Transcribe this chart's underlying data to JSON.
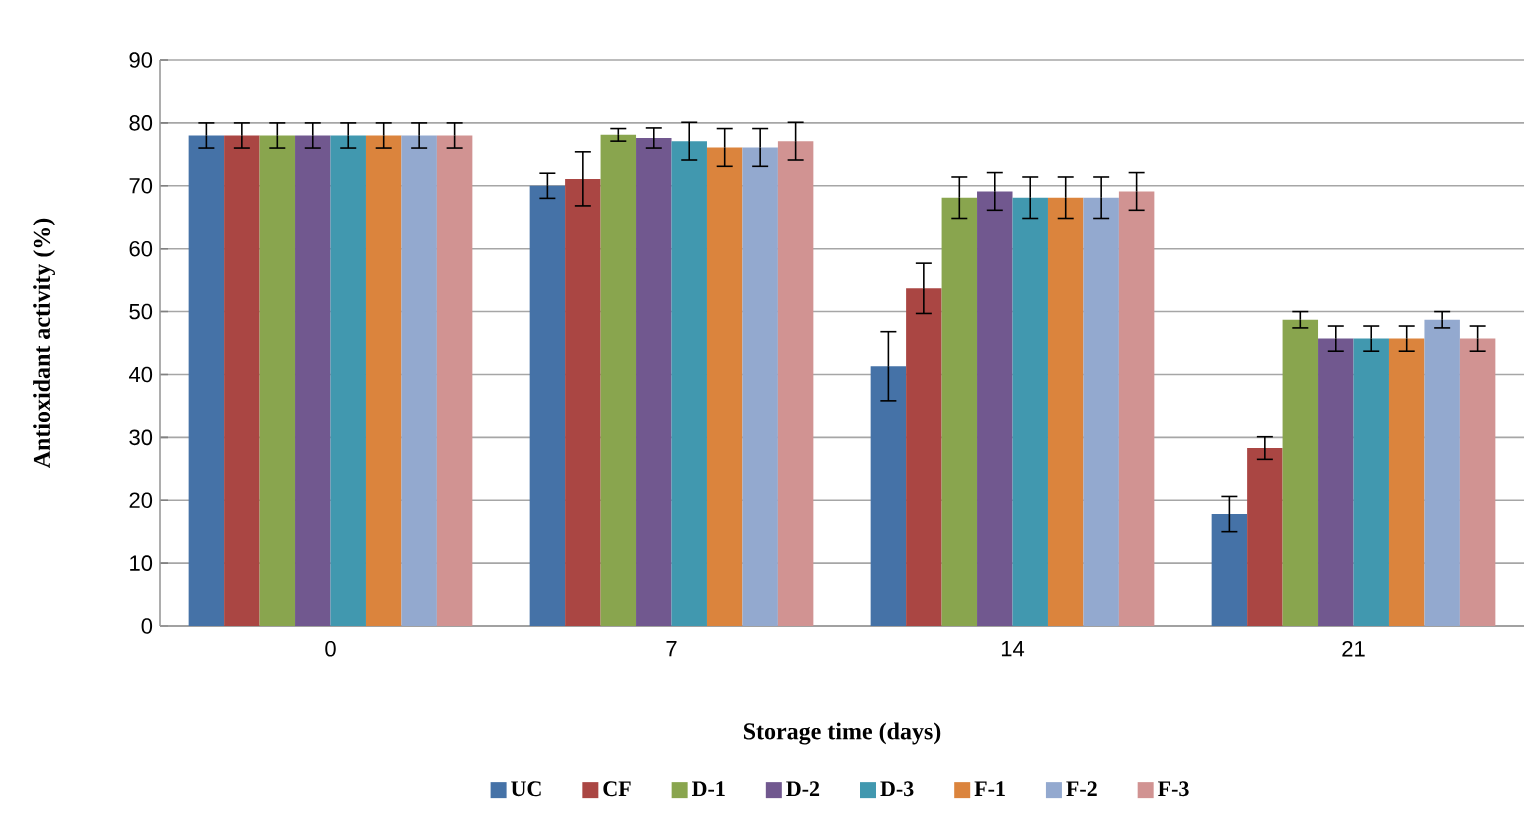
{
  "chart_data": {
    "type": "bar",
    "xlabel": "Storage time (days)",
    "ylabel": "Antioxidant activity (%)",
    "categories": [
      "0",
      "7",
      "14",
      "21"
    ],
    "series": [
      {
        "name": "UC",
        "color": "#4572a7",
        "values": [
          78,
          70,
          41.3,
          17.8
        ],
        "errors": [
          2,
          2,
          5.5,
          2.8
        ]
      },
      {
        "name": "CF",
        "color": "#aa4643",
        "values": [
          78,
          71.1,
          53.7,
          28.3
        ],
        "errors": [
          2,
          4.3,
          4,
          1.8
        ]
      },
      {
        "name": "D-1",
        "color": "#89a54e",
        "values": [
          78,
          78.1,
          68.1,
          48.7
        ],
        "errors": [
          2,
          1,
          3.3,
          1.3
        ]
      },
      {
        "name": "D-2",
        "color": "#71588f",
        "values": [
          78,
          77.6,
          69.1,
          45.7
        ],
        "errors": [
          2,
          1.6,
          3,
          2
        ]
      },
      {
        "name": "D-3",
        "color": "#4198af",
        "values": [
          78,
          77.1,
          68.1,
          45.7
        ],
        "errors": [
          2,
          3,
          3.3,
          2
        ]
      },
      {
        "name": "F-1",
        "color": "#db843d",
        "values": [
          78,
          76.1,
          68.1,
          45.7
        ],
        "errors": [
          2,
          3,
          3.3,
          2
        ]
      },
      {
        "name": "F-2",
        "color": "#93a9cf",
        "values": [
          78,
          76.1,
          68.1,
          48.7
        ],
        "errors": [
          2,
          3,
          3.3,
          1.3
        ]
      },
      {
        "name": "F-3",
        "color": "#d19392",
        "values": [
          78,
          77.1,
          69.1,
          45.7
        ],
        "errors": [
          2,
          3,
          3,
          2
        ]
      }
    ],
    "ylim": [
      0,
      90
    ],
    "yticks": [
      0,
      10,
      20,
      30,
      40,
      50,
      60,
      70,
      80,
      90
    ],
    "grid": "y",
    "legend": "bottom"
  }
}
